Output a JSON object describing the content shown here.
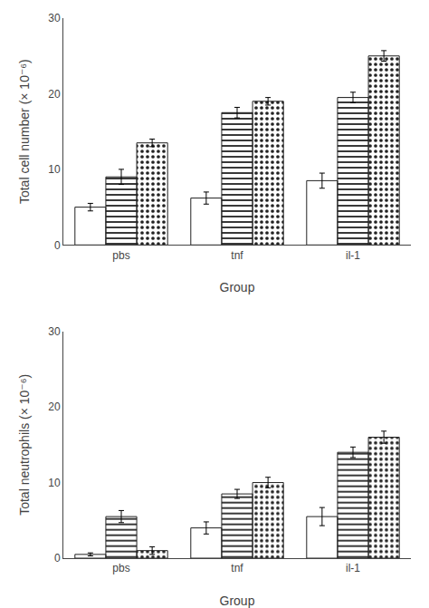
{
  "chart_data": [
    {
      "type": "bar",
      "categories": [
        "pbs",
        "tnf",
        "il-1"
      ],
      "series": [
        {
          "color": "white",
          "values": [
            5.0,
            6.2,
            8.5
          ],
          "errors": [
            0.5,
            0.8,
            1.0
          ]
        },
        {
          "color": "white",
          "values": [
            9.0,
            17.5,
            19.5
          ],
          "errors": [
            1.0,
            0.7,
            0.7
          ]
        },
        {
          "color": "#b0b0b0",
          "values": [
            13.5,
            19.0,
            25.0
          ],
          "errors": [
            0.5,
            0.5,
            0.7
          ]
        }
      ],
      "xlabel": "Group",
      "ylabel": "Total cell number (× 10⁻⁶)",
      "ylim": [
        0,
        30
      ],
      "yticks": [
        0,
        10,
        20,
        30
      ],
      "grid": false
    },
    {
      "type": "bar",
      "categories": [
        "pbs",
        "tnf",
        "il-1"
      ],
      "series": [
        {
          "color": "white",
          "values": [
            0.5,
            4.0,
            5.5
          ],
          "errors": [
            0.2,
            0.8,
            1.2
          ]
        },
        {
          "color": "white",
          "values": [
            5.5,
            8.5,
            14.0
          ],
          "errors": [
            0.8,
            0.6,
            0.7
          ]
        },
        {
          "color": "#b0b0b0",
          "values": [
            1.0,
            10.0,
            16.0
          ],
          "errors": [
            0.5,
            0.7,
            0.8
          ]
        }
      ],
      "xlabel": "Group",
      "ylabel": "Total neutrophils (× 10⁻⁶)",
      "ylim": [
        0,
        30
      ],
      "yticks": [
        0,
        10,
        20,
        30
      ],
      "grid": false
    }
  ]
}
